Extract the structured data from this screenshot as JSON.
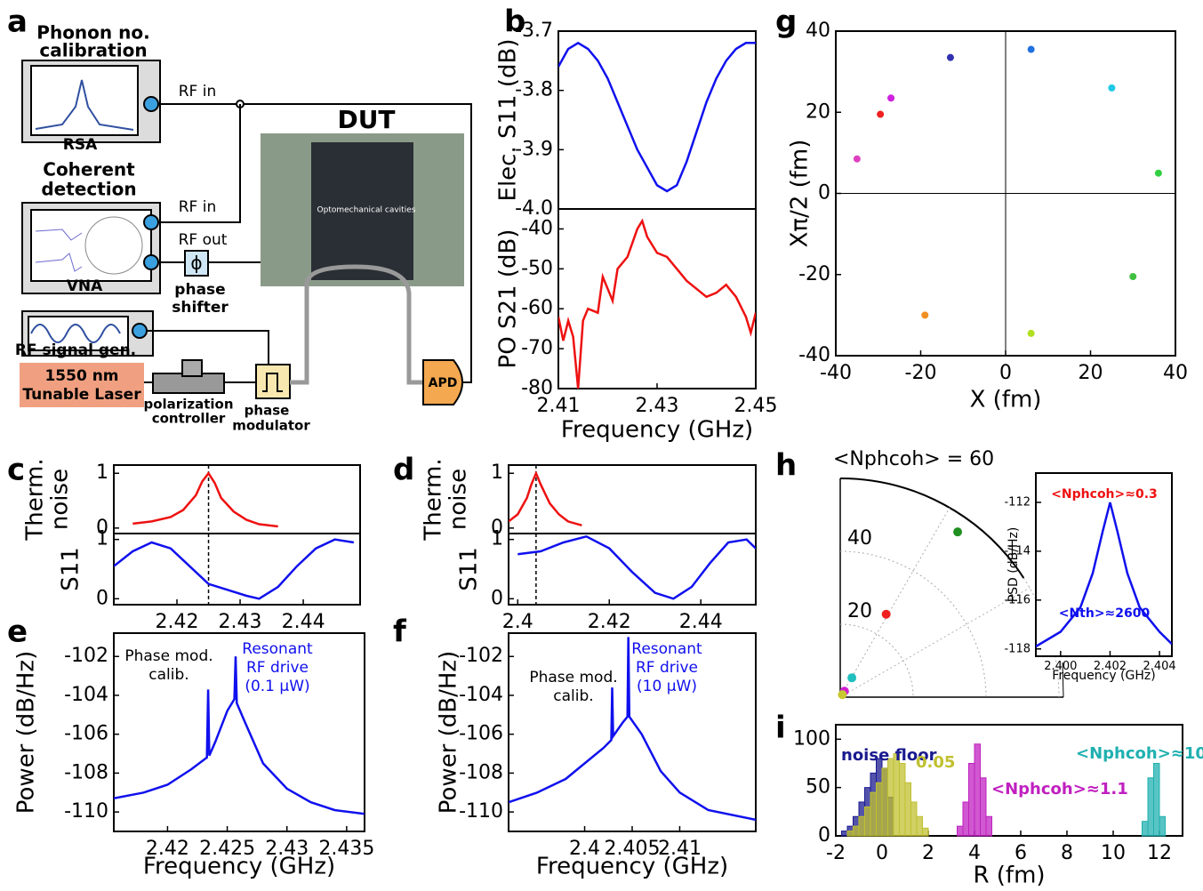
{
  "figure": {
    "panel_labels": [
      "a",
      "b",
      "c",
      "d",
      "e",
      "f",
      "g",
      "h",
      "i"
    ],
    "diagram": {
      "rsa_title": [
        "Phonon no.",
        "calibration"
      ],
      "rsa": "RSA",
      "rf_in_1": "RF in",
      "coherent_title": [
        "Coherent",
        "detection"
      ],
      "rf_in_2": "RF in",
      "rf_out": "RF out",
      "vna": "VNA",
      "phase_symbol": "ϕ",
      "phase_shifter": [
        "phase",
        "shifter"
      ],
      "rf_gen": "RF signal gen.",
      "laser": [
        "1550 nm",
        "Tunable Laser"
      ],
      "polarization": [
        "polarization",
        "controller"
      ],
      "modulator": [
        "phase",
        "modulator"
      ],
      "dut": "DUT",
      "cavities": "Optomechanical cavities",
      "apd": "APD"
    }
  },
  "chart_data": [
    {
      "type": "line",
      "ylabel": "Elec. S11 (dB)",
      "xlim": [
        2.41,
        2.45
      ],
      "ylim": [
        -4.0,
        -3.7
      ],
      "yticks": [
        -3.7,
        -3.8,
        -3.9,
        {
          "value": -4.0,
          "label": "-4.0"
        }
      ],
      "x": [
        2.41,
        2.412,
        2.414,
        2.416,
        2.418,
        2.42,
        2.422,
        2.424,
        2.426,
        2.428,
        2.43,
        2.432,
        2.434,
        2.436,
        2.438,
        2.44,
        2.442,
        2.444,
        2.446,
        2.448,
        2.45
      ],
      "series": [
        {
          "color": "#1010ee",
          "values": [
            -3.76,
            -3.73,
            -3.72,
            -3.73,
            -3.75,
            -3.78,
            -3.82,
            -3.86,
            -3.9,
            -3.93,
            -3.96,
            -3.97,
            -3.96,
            -3.92,
            -3.87,
            -3.82,
            -3.78,
            -3.75,
            -3.73,
            -3.72,
            -3.72
          ]
        }
      ]
    },
    {
      "type": "line",
      "ylabel": "PO S21 (dB)",
      "xlabel": "Frequency (GHz)",
      "xlim": [
        2.41,
        2.45
      ],
      "ylim": [
        -80,
        -35
      ],
      "xticks": [
        2.41,
        2.43,
        2.45
      ],
      "yticks": [
        -40,
        -50,
        -60,
        -70,
        -80
      ],
      "x": [
        2.41,
        2.411,
        2.412,
        2.413,
        2.414,
        2.415,
        2.416,
        2.418,
        2.419,
        2.42,
        2.421,
        2.422,
        2.424,
        2.426,
        2.427,
        2.428,
        2.43,
        2.432,
        2.434,
        2.436,
        2.438,
        2.44,
        2.442,
        2.444,
        2.446,
        2.448,
        2.449,
        2.45
      ],
      "series": [
        {
          "color": "#ee1111",
          "values": [
            -62,
            -68,
            -63,
            -67,
            -80,
            -63,
            -60,
            -61,
            -52,
            -55,
            -58,
            -50,
            -47,
            -40,
            -38,
            -42,
            -46,
            -47,
            -50,
            -53,
            -55,
            -57,
            -56,
            -54,
            -57,
            -62,
            -66,
            -61
          ]
        }
      ]
    },
    {
      "type": "scatter",
      "xlabel": "X (fm)",
      "ylabel": "Xπ/2 (fm)",
      "xlim": [
        -40,
        40
      ],
      "ylim": [
        -40,
        40
      ],
      "xticks": [
        -40,
        -20,
        0,
        20,
        40
      ],
      "yticks": [
        40,
        20,
        0,
        -20,
        -40
      ],
      "zero_lines": true,
      "x": [
        -35,
        -29.5,
        -27,
        -13,
        6,
        25,
        36,
        30,
        6,
        -19
      ],
      "values": [
        8.5,
        19.5,
        23.5,
        33.5,
        35.5,
        26,
        5,
        -20.5,
        -34.5,
        -30
      ],
      "colors": [
        "#e040c0",
        "#ee2020",
        "#d020e0",
        "#3030b0",
        "#2070e0",
        "#20c8e8",
        "#30d040",
        "#40c040",
        "#b0e020",
        "#f09020"
      ]
    },
    {
      "type": "line",
      "ylabel": [
        "Therm.",
        "noise"
      ],
      "xlim": [
        2.41,
        2.449
      ],
      "ylim": [
        -0.1,
        1.15
      ],
      "yticks": [
        0,
        1
      ],
      "vline": 2.425,
      "x": [
        2.413,
        2.416,
        2.419,
        2.421,
        2.423,
        2.424,
        2.425,
        2.426,
        2.427,
        2.429,
        2.431,
        2.433,
        2.436
      ],
      "series": [
        {
          "color": "#ee1111",
          "values": [
            0.08,
            0.12,
            0.2,
            0.33,
            0.6,
            0.85,
            1.0,
            0.82,
            0.55,
            0.3,
            0.15,
            0.07,
            0.03
          ]
        }
      ]
    },
    {
      "type": "line",
      "ylabel": "S11",
      "xlim": [
        2.41,
        2.449
      ],
      "ylim": [
        -0.1,
        1.1
      ],
      "yticks": [
        0,
        1
      ],
      "xticks": [
        2.42,
        2.43,
        2.44
      ],
      "vline": 2.425,
      "x": [
        2.41,
        2.413,
        2.416,
        2.419,
        2.422,
        2.425,
        2.428,
        2.431,
        2.433,
        2.436,
        2.439,
        2.442,
        2.445,
        2.448
      ],
      "series": [
        {
          "color": "#1010ee",
          "values": [
            0.55,
            0.8,
            0.95,
            0.85,
            0.55,
            0.25,
            0.15,
            0.05,
            0.0,
            0.2,
            0.55,
            0.85,
            1.0,
            0.95
          ]
        }
      ]
    },
    {
      "type": "line",
      "ylabel": [
        "Therm.",
        "noise"
      ],
      "xlim": [
        2.398,
        2.452
      ],
      "ylim": [
        -0.1,
        1.15
      ],
      "yticks": [
        0,
        1
      ],
      "vline": 2.404,
      "x": [
        2.398,
        2.4,
        2.402,
        2.403,
        2.404,
        2.405,
        2.407,
        2.409,
        2.411,
        2.414
      ],
      "series": [
        {
          "color": "#ee1111",
          "values": [
            0.12,
            0.25,
            0.55,
            0.8,
            1.0,
            0.8,
            0.45,
            0.25,
            0.12,
            0.05
          ]
        }
      ]
    },
    {
      "type": "line",
      "ylabel": "S11",
      "xlim": [
        2.398,
        2.452
      ],
      "ylim": [
        -0.1,
        1.1
      ],
      "yticks": [
        0,
        1
      ],
      "xticks": [
        2.4,
        2.42,
        2.44
      ],
      "vline": 2.404,
      "x": [
        2.4,
        2.405,
        2.41,
        2.415,
        2.42,
        2.425,
        2.43,
        2.434,
        2.438,
        2.442,
        2.446,
        2.45,
        2.452
      ],
      "series": [
        {
          "color": "#1010ee",
          "values": [
            0.75,
            0.8,
            0.95,
            1.05,
            0.85,
            0.45,
            0.1,
            0.0,
            0.2,
            0.6,
            0.95,
            1.0,
            0.85
          ]
        }
      ]
    },
    {
      "type": "line",
      "ylabel": "Power (dB/Hz)",
      "xlabel": "Frequency (GHz)",
      "xlim": [
        2.4155,
        2.4365
      ],
      "ylim": [
        -111,
        -100.8
      ],
      "xticks": [
        2.42,
        2.425,
        2.43,
        2.435
      ],
      "yticks": [
        -102,
        -104,
        -106,
        -108,
        -110
      ],
      "annotations": [
        {
          "text": [
            "Phase mod.",
            "calib."
          ],
          "color": "#000000"
        },
        {
          "text": [
            "Resonant",
            "RF drive",
            "(0.1 μW)"
          ],
          "color": "#1010ee"
        }
      ],
      "x": [
        2.4155,
        2.418,
        2.42,
        2.422,
        2.4233,
        2.4234,
        2.4235,
        2.424,
        2.425,
        2.4256,
        2.4257,
        2.4258,
        2.4265,
        2.428,
        2.43,
        2.432,
        2.434,
        2.4365
      ],
      "series": [
        {
          "color": "#1010ee",
          "values": [
            -109.3,
            -109.0,
            -108.6,
            -107.8,
            -107.2,
            -103.7,
            -107.1,
            -106.4,
            -104.8,
            -104.2,
            -102.0,
            -104.4,
            -105.4,
            -107.5,
            -108.8,
            -109.5,
            -109.9,
            -110.1
          ]
        }
      ]
    },
    {
      "type": "line",
      "ylabel": "Power (dB/Hz)",
      "xlabel": "Frequency (GHz)",
      "xlim": [
        2.392,
        2.418
      ],
      "ylim": [
        -111,
        -100.8
      ],
      "xticks": [
        2.4,
        2.405,
        2.41
      ],
      "yticks": [
        -102,
        -104,
        -106,
        -108,
        -110
      ],
      "annotations": [
        {
          "text": [
            "Phase mod.",
            "calib."
          ],
          "color": "#000000"
        },
        {
          "text": [
            "Resonant",
            "RF drive",
            "(10 μW)"
          ],
          "color": "#1010ee"
        }
      ],
      "x": [
        2.392,
        2.395,
        2.398,
        2.4,
        2.402,
        2.4028,
        2.4029,
        2.403,
        2.404,
        2.4045,
        2.4046,
        2.4047,
        2.406,
        2.408,
        2.41,
        2.413,
        2.418
      ],
      "series": [
        {
          "color": "#1010ee",
          "values": [
            -109.5,
            -109.0,
            -108.3,
            -107.5,
            -106.7,
            -106.3,
            -103.6,
            -106.1,
            -105.4,
            -105.1,
            -101.0,
            -105.1,
            -106.0,
            -107.9,
            -109.0,
            -109.9,
            -110.4
          ]
        }
      ]
    },
    {
      "type": "polar",
      "title": "<Nphcoh> = 60",
      "rlim": [
        0,
        60
      ],
      "rticks": [
        20,
        40
      ],
      "theta_grid": [
        30,
        60
      ],
      "r": [
        26,
        55.6,
        6.2,
        2,
        0.9
      ],
      "theta": [
        61,
        54.6,
        59,
        55,
        50
      ],
      "colors": [
        "#ee2020",
        "#209020",
        "#20c0c0",
        "#d020d0",
        "#c8c830"
      ]
    },
    {
      "type": "line",
      "ylabel": "PSD (dB/Hz)",
      "xlabel": "Frequency (GHz)",
      "xlim": [
        2.399,
        2.4045
      ],
      "ylim": [
        -118.3,
        -110.8
      ],
      "xticks": [
        {
          "value": 2.4,
          "label": "2.400"
        },
        2.402,
        2.404
      ],
      "yticks": [
        -112,
        -114,
        -116,
        -118
      ],
      "annotations": [
        {
          "text": [
            "<Nphcoh>≈0.3"
          ],
          "color": "#ee1111"
        },
        {
          "text": [
            "<Nth>≈2600"
          ],
          "color": "#1010ee"
        }
      ],
      "x": [
        2.399,
        2.4,
        2.4008,
        2.4013,
        2.4017,
        2.402,
        2.4023,
        2.4027,
        2.4032,
        2.404,
        2.4045
      ],
      "series": [
        {
          "color": "#1010ee",
          "values": [
            -117.9,
            -117.3,
            -116.3,
            -114.9,
            -113.2,
            -112.0,
            -113.2,
            -114.9,
            -116.3,
            -117.3,
            -117.8
          ]
        }
      ]
    },
    {
      "type": "histogram",
      "xlabel": "R (fm)",
      "xlim": [
        -2,
        13
      ],
      "ylim": [
        0,
        115
      ],
      "xticks": [
        -2,
        0,
        2,
        4,
        6,
        8,
        10,
        12
      ],
      "yticks": [
        0,
        50,
        100
      ],
      "series": [
        {
          "name": "noise floor",
          "color": "#1a1a90",
          "bins": [
            -1.75,
            -1.5,
            -1.25,
            -1,
            -0.75,
            -0.5,
            -0.25,
            0,
            0.25,
            0.5
          ],
          "values": [
            5,
            10,
            20,
            35,
            50,
            65,
            80,
            70,
            40
          ]
        },
        {
          "name": "0.05",
          "color": "#c0c030",
          "bins": [
            -1.5,
            -1.25,
            -1,
            -0.75,
            -0.5,
            -0.25,
            0,
            0.25,
            0.5,
            0.75,
            1,
            1.25,
            1.5,
            1.75,
            2
          ],
          "values": [
            5,
            10,
            20,
            30,
            45,
            55,
            70,
            80,
            85,
            75,
            55,
            35,
            20,
            8
          ]
        },
        {
          "name": "<Nphcoh>≈1.1",
          "color": "#c020c0",
          "bins": [
            3.25,
            3.5,
            3.75,
            4,
            4.25,
            4.5,
            4.75
          ],
          "values": [
            10,
            35,
            75,
            95,
            60,
            20
          ]
        },
        {
          "name": "<Nphcoh>≈10",
          "color": "#20b0b0",
          "bins": [
            11.25,
            11.5,
            11.75,
            12,
            12.25
          ],
          "values": [
            15,
            60,
            75,
            20
          ]
        }
      ]
    }
  ]
}
